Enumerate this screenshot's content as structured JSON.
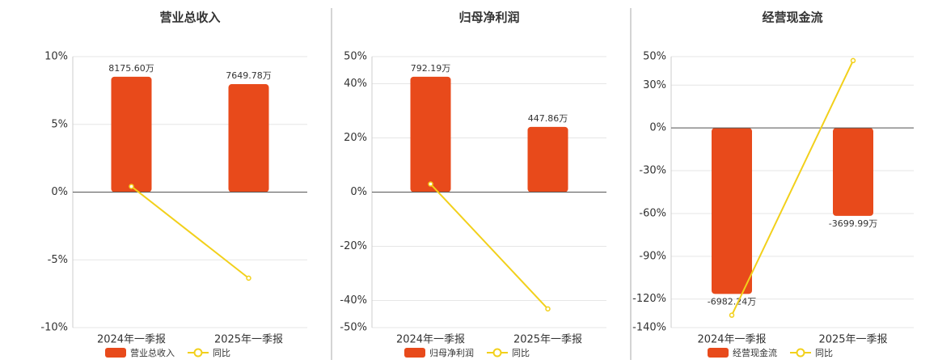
{
  "chart_data": [
    {
      "type": "bar",
      "title": "营业总收入",
      "categories": [
        "2024年一季报",
        "2025年一季报"
      ],
      "ylim": [
        -10,
        10
      ],
      "yticks": [
        {
          "value": -10,
          "label": "-10%"
        },
        {
          "value": -5,
          "label": "-5%"
        },
        {
          "value": 0,
          "label": "0%"
        },
        {
          "value": 5,
          "label": "5%"
        },
        {
          "value": 10,
          "label": "10%"
        }
      ],
      "y2lim": [
        -9600,
        9600
      ],
      "grid": true,
      "series": [
        {
          "name": "营业总收入",
          "type": "bar",
          "axis": "y2",
          "color": "#e84a1b",
          "values": [
            8175.6,
            7649.78
          ],
          "value_labels": [
            "8175.60万",
            "7649.78万"
          ]
        },
        {
          "name": "同比",
          "type": "line",
          "color": "#f2d01b",
          "values": [
            0.42,
            -6.35
          ]
        }
      ]
    },
    {
      "type": "bar",
      "title": "归母净利润",
      "categories": [
        "2024年一季报",
        "2025年一季报"
      ],
      "ylim": [
        -50,
        50
      ],
      "yticks": [
        {
          "value": -50,
          "label": "-50%"
        },
        {
          "value": -40,
          "label": "-40%"
        },
        {
          "value": -20,
          "label": "-20%"
        },
        {
          "value": 0,
          "label": "0%"
        },
        {
          "value": 20,
          "label": "20%"
        },
        {
          "value": 40,
          "label": "40%"
        },
        {
          "value": 50,
          "label": "50%"
        }
      ],
      "y2lim": [
        -930,
        930
      ],
      "grid": true,
      "series": [
        {
          "name": "归母净利润",
          "type": "bar",
          "axis": "y2",
          "color": "#e84a1b",
          "values": [
            792.19,
            447.86
          ],
          "value_labels": [
            "792.19万",
            "447.86万"
          ]
        },
        {
          "name": "同比",
          "type": "line",
          "color": "#f2d01b",
          "values": [
            2.98,
            -43.1
          ]
        }
      ]
    },
    {
      "type": "bar",
      "title": "经营现金流",
      "categories": [
        "2024年一季报",
        "2025年一季报"
      ],
      "ylim": [
        -140,
        50
      ],
      "yticks": [
        {
          "value": -140,
          "label": "-140%"
        },
        {
          "value": -120,
          "label": "-120%"
        },
        {
          "value": -90,
          "label": "-90%"
        },
        {
          "value": -60,
          "label": "-60%"
        },
        {
          "value": -30,
          "label": "-30%"
        },
        {
          "value": 0,
          "label": "0%"
        },
        {
          "value": 30,
          "label": "30%"
        },
        {
          "value": 50,
          "label": "50%"
        }
      ],
      "y2lim": [
        -8400,
        3000
      ],
      "grid": true,
      "series": [
        {
          "name": "经营现金流",
          "type": "bar",
          "axis": "y2",
          "color": "#e84a1b",
          "values": [
            -6982.24,
            -3699.99
          ],
          "value_labels": [
            "-6982.24万",
            "-3699.99万"
          ]
        },
        {
          "name": "同比",
          "type": "line",
          "color": "#f2d01b",
          "values": [
            -131.3,
            47.2
          ]
        }
      ]
    }
  ]
}
